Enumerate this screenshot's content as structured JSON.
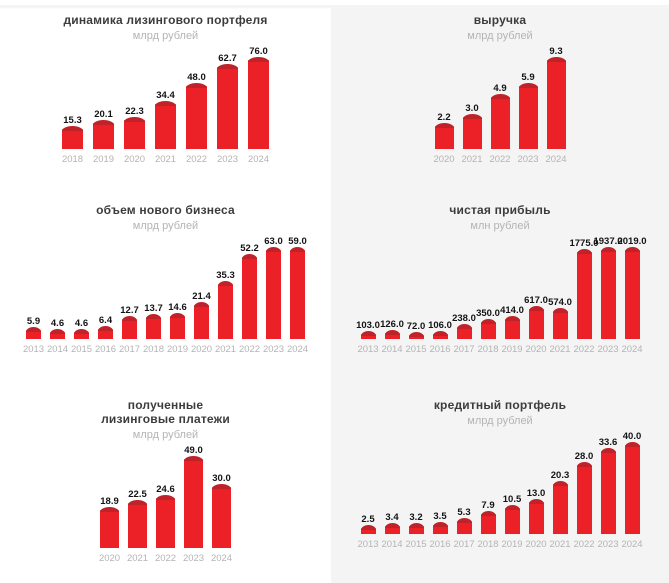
{
  "colors": {
    "bar": "#ec2027",
    "bar_cap": "#bf2229",
    "panel_bg": "#f4f4f4",
    "page_bg": "#ffffff",
    "title": "#3c3c3c",
    "muted": "#b4b4b4",
    "value": "#141414"
  },
  "chart_data": [
    {
      "type": "bar",
      "title": "динамика лизингового портфеля",
      "subtitle": "млрд рублей",
      "categories": [
        "2018",
        "2019",
        "2020",
        "2021",
        "2022",
        "2023",
        "2024"
      ],
      "values": [
        15.3,
        20.1,
        22.3,
        34.4,
        48.0,
        62.7,
        76.0
      ],
      "ylim": [
        0,
        76
      ],
      "grid": "off",
      "legend": "none",
      "value_labels": "above-bars, one decimal"
    },
    {
      "type": "bar",
      "title": "выручка",
      "subtitle": "млрд рублей",
      "categories": [
        "2020",
        "2021",
        "2022",
        "2023",
        "2024"
      ],
      "values": [
        2.2,
        3.0,
        4.9,
        5.9,
        9.3
      ],
      "ylim": [
        0,
        9.3
      ],
      "grid": "off",
      "legend": "none",
      "value_labels": "above-bars, one decimal"
    },
    {
      "type": "bar",
      "title": "объем нового бизнеса",
      "subtitle": "млрд рублей",
      "categories": [
        "2013",
        "2014",
        "2015",
        "2016",
        "2017",
        "2018",
        "2019",
        "2020",
        "2021",
        "2022",
        "2023",
        "2024"
      ],
      "values": [
        5.9,
        4.6,
        4.6,
        6.4,
        12.7,
        13.7,
        14.6,
        21.4,
        35.3,
        52.2,
        63.0,
        59.0
      ],
      "ylim": [
        0,
        63
      ],
      "grid": "off",
      "legend": "none",
      "value_labels": "above-bars, one decimal"
    },
    {
      "type": "bar",
      "title": "чистая прибыль",
      "subtitle": "млн рублей",
      "categories": [
        "2013",
        "2014",
        "2015",
        "2016",
        "2017",
        "2018",
        "2019",
        "2020",
        "2021",
        "2022",
        "2023",
        "2024"
      ],
      "values": [
        103.0,
        126.0,
        72.0,
        106.0,
        238.0,
        350.0,
        414.0,
        617.0,
        574.0,
        1775.0,
        1937.0,
        2019.0
      ],
      "ylim": [
        0,
        2019
      ],
      "grid": "off",
      "legend": "none",
      "value_labels": "above-bars, one decimal"
    },
    {
      "type": "bar",
      "title": "полученные\nлизинговые платежи",
      "subtitle": "млрд рублей",
      "categories": [
        "2020",
        "2021",
        "2022",
        "2023",
        "2024"
      ],
      "values": [
        18.9,
        22.5,
        24.6,
        49.0,
        30.0
      ],
      "ylim": [
        0,
        49
      ],
      "grid": "off",
      "legend": "none",
      "value_labels": "above-bars, one decimal"
    },
    {
      "type": "bar",
      "title": "кредитный портфель",
      "subtitle": "млрд рублей",
      "categories": [
        "2013",
        "2014",
        "2015",
        "2016",
        "2017",
        "2018",
        "2019",
        "2020",
        "2021",
        "2022",
        "2023",
        "2024"
      ],
      "values": [
        2.5,
        3.4,
        3.2,
        3.5,
        5.3,
        7.9,
        10.5,
        13.0,
        20.3,
        28.0,
        33.6,
        40.0
      ],
      "ylim": [
        0,
        40
      ],
      "grid": "off",
      "legend": "none",
      "value_labels": "above-bars, one decimal"
    }
  ]
}
